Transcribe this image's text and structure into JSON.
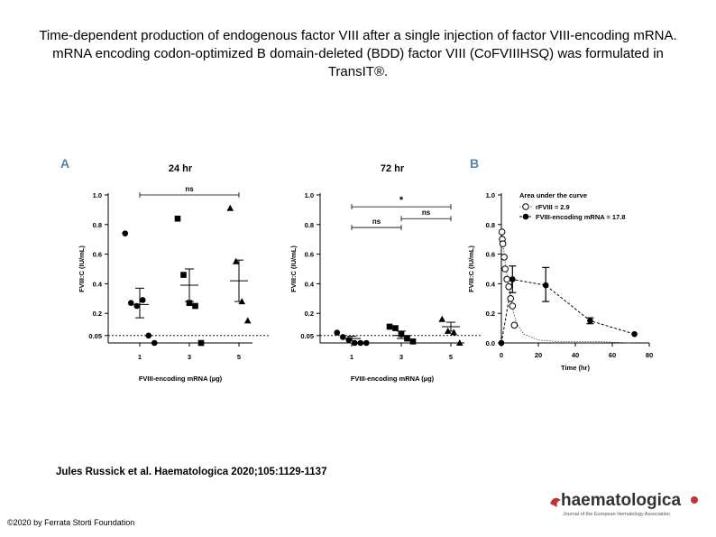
{
  "slide": {
    "title": "Time-dependent production of endogenous factor VIII after a single injection of factor VIII-encoding mRNA. mRNA encoding codon-optimized B domain-deleted (BDD) factor VIII (CoFVIIIHSQ) was formulated in TransIT®.",
    "citation": "Jules Russick et al. Haematologica 2020;105:1129-1137",
    "copyright": "©2020 by Ferrata Storti Foundation",
    "logo_text": "haematologica",
    "logo_subtext": "Journal of the European Hematology Association"
  },
  "colors": {
    "panel_letter": "#5b7fa8",
    "points": "#000000",
    "logo_red": "#c0312f",
    "logo_text": "#333333"
  },
  "chart_data": [
    {
      "type": "scatter",
      "panel": "A",
      "title": "24 hr",
      "xlabel": "FVIII-encoding mRNA (µg)",
      "ylabel": "FVIII:C (IU/mL)",
      "categories": [
        "1",
        "3",
        "5"
      ],
      "yticks": [
        "0.05",
        "0.2",
        "0.4",
        "0.6",
        "0.8",
        "1.0"
      ],
      "ylim": [
        0,
        1.0
      ],
      "reference_line": 0.05,
      "series": [
        {
          "x": "1",
          "marker": "circle",
          "points": [
            0.74,
            0.27,
            0.25,
            0.29,
            0.05,
            0.0
          ],
          "mean": 0.26,
          "sem": [
            0.17,
            0.37
          ]
        },
        {
          "x": "3",
          "marker": "square",
          "points": [
            0.84,
            0.46,
            0.27,
            0.25,
            0.0
          ],
          "mean": 0.39,
          "sem": [
            0.28,
            0.5
          ]
        },
        {
          "x": "5",
          "marker": "triangle",
          "points": [
            0.91,
            0.55,
            0.28,
            0.15
          ],
          "mean": 0.42,
          "sem": [
            0.28,
            0.56
          ]
        }
      ],
      "annotations": [
        {
          "text": "ns",
          "from": "1",
          "to": "5",
          "y": 1.0
        }
      ]
    },
    {
      "type": "scatter",
      "panel": "A",
      "title": "72 hr",
      "xlabel": "FVIII-encoding mRNA (µg)",
      "ylabel": "FVIII:C (IU/mL)",
      "categories": [
        "1",
        "3",
        "5"
      ],
      "yticks": [
        "0.05",
        "0.2",
        "0.4",
        "0.6",
        "0.8",
        "1.0"
      ],
      "ylim": [
        0,
        1.0
      ],
      "reference_line": 0.05,
      "series": [
        {
          "x": "1",
          "marker": "circle",
          "points": [
            0.07,
            0.04,
            0.02,
            0.0,
            0.0,
            0.0
          ],
          "mean": 0.03,
          "sem": [
            0.015,
            0.045
          ]
        },
        {
          "x": "3",
          "marker": "square",
          "points": [
            0.11,
            0.1,
            0.06,
            0.03,
            0.01
          ],
          "mean": 0.05,
          "sem": [
            0.03,
            0.08
          ]
        },
        {
          "x": "5",
          "marker": "triangle",
          "points": [
            0.16,
            0.08,
            0.07,
            0.0
          ],
          "mean": 0.11,
          "sem": [
            0.08,
            0.14
          ]
        }
      ],
      "annotations": [
        {
          "text": "*",
          "from": "1",
          "to": "5",
          "y": 0.92
        },
        {
          "text": "ns",
          "from": "3",
          "to": "5",
          "y": 0.84
        },
        {
          "text": "ns",
          "from": "1",
          "to": "3",
          "y": 0.78
        }
      ]
    },
    {
      "type": "line",
      "panel": "B",
      "title": "",
      "xlabel": "Time (hr)",
      "ylabel": "FVIII:C (IU/mL)",
      "xticks": [
        "0",
        "20",
        "40",
        "60",
        "80"
      ],
      "yticks": [
        "0.0",
        "0.2",
        "0.4",
        "0.6",
        "0.8",
        "1.0"
      ],
      "xlim": [
        0,
        80
      ],
      "ylim": [
        0,
        1.0
      ],
      "legend_title": "Area under the curve",
      "legend_position": "top-right",
      "series": [
        {
          "name": "rFVIII = 2.9",
          "marker": "open-circle",
          "line": "dotted",
          "points": [
            [
              0.3,
              0.75
            ],
            [
              0.5,
              0.7
            ],
            [
              0.8,
              0.67
            ],
            [
              1.5,
              0.58
            ],
            [
              2,
              0.5
            ],
            [
              3,
              0.43
            ],
            [
              4,
              0.38
            ],
            [
              5,
              0.3
            ],
            [
              6,
              0.25
            ],
            [
              7,
              0.12
            ]
          ],
          "curve": [
            [
              0,
              0.75
            ],
            [
              1,
              0.67
            ],
            [
              2,
              0.55
            ],
            [
              4,
              0.38
            ],
            [
              6,
              0.24
            ],
            [
              8,
              0.14
            ],
            [
              12,
              0.06
            ],
            [
              20,
              0.02
            ],
            [
              30,
              0.01
            ],
            [
              50,
              0.01
            ],
            [
              70,
              0.0
            ]
          ]
        },
        {
          "name": "FVIII-encoding mRNA = 17.8",
          "marker": "filled-circle",
          "line": "dashed",
          "points": [
            [
              0,
              0.0
            ],
            [
              6,
              0.43
            ],
            [
              24,
              0.39
            ],
            [
              48,
              0.15
            ],
            [
              72,
              0.06
            ]
          ],
          "errors": [
            [
              6,
              0.34,
              0.52
            ],
            [
              24,
              0.28,
              0.51
            ],
            [
              48,
              0.13,
              0.17
            ]
          ]
        }
      ]
    }
  ]
}
